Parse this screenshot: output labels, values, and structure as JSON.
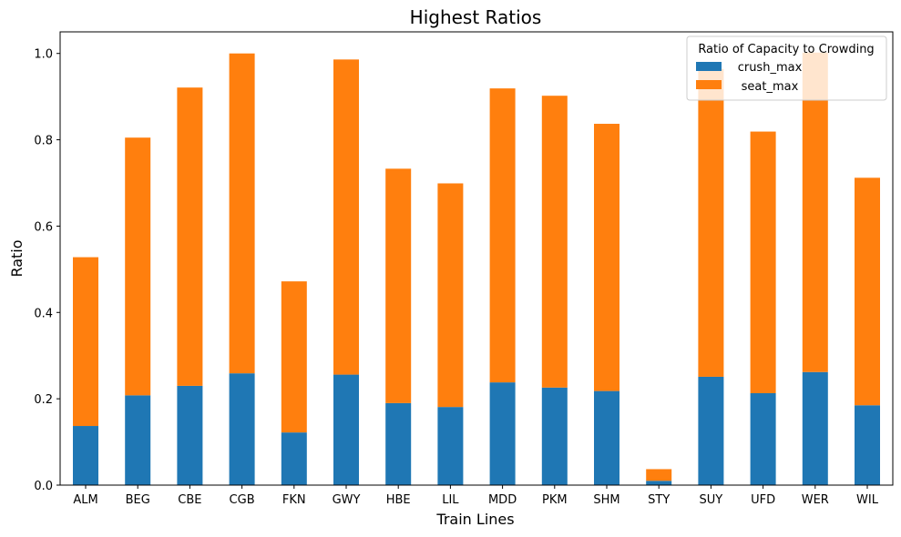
{
  "chart_data": {
    "type": "bar",
    "stacked": true,
    "title": "Highest Ratios",
    "xlabel": "Train Lines",
    "ylabel": "Ratio",
    "ylim": [
      0,
      1.05
    ],
    "yticks": [
      "0.0",
      "0.2",
      "0.4",
      "0.6",
      "0.8",
      "1.0"
    ],
    "grid": false,
    "legend": {
      "title": "Ratio of Capacity to Crowding",
      "placement": "top-right",
      "entries": [
        "crush_max",
        "seat_max"
      ]
    },
    "categories": [
      "ALM",
      "BEG",
      "CBE",
      "CGB",
      "FKN",
      "GWY",
      "HBE",
      "LIL",
      "MDD",
      "PKM",
      "SHM",
      "STY",
      "SUY",
      "UFD",
      "WER",
      "WIL"
    ],
    "series": [
      {
        "name": "crush_max",
        "color": "#1f77b4",
        "values": [
          0.137,
          0.208,
          0.23,
          0.259,
          0.122,
          0.256,
          0.19,
          0.181,
          0.238,
          0.226,
          0.218,
          0.01,
          0.251,
          0.213,
          0.262,
          0.185
        ]
      },
      {
        "name": "seat_max",
        "color": "#ff7f0e",
        "values": [
          0.391,
          0.597,
          0.691,
          0.741,
          0.35,
          0.73,
          0.543,
          0.518,
          0.681,
          0.676,
          0.619,
          0.027,
          0.713,
          0.606,
          0.74,
          0.527
        ]
      }
    ]
  }
}
